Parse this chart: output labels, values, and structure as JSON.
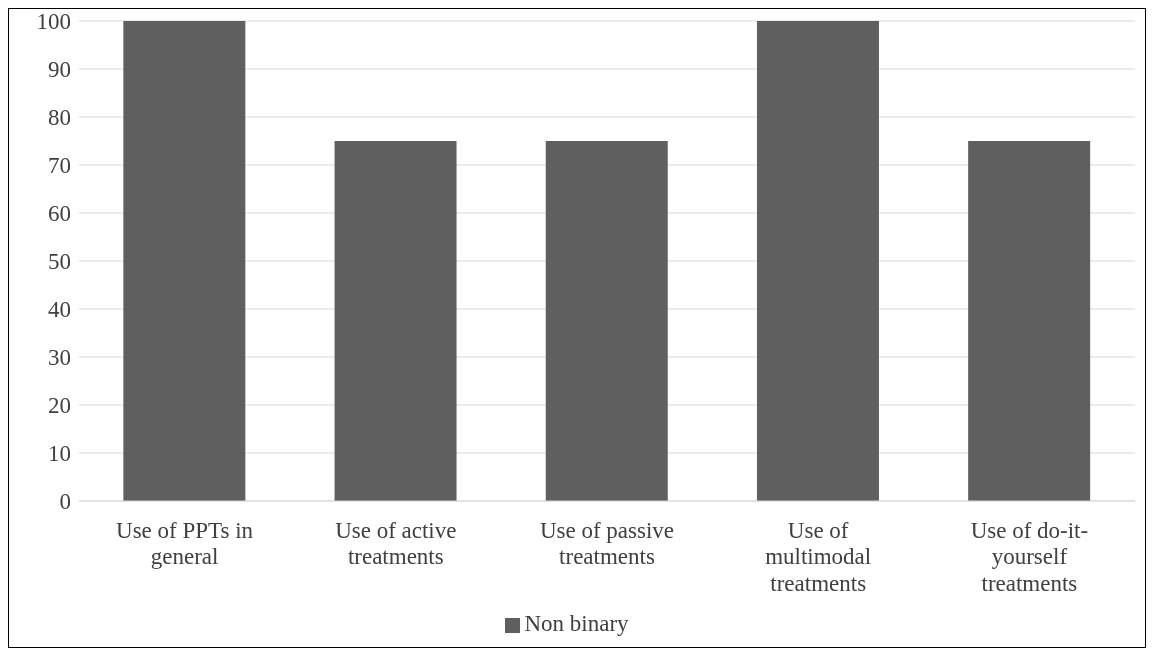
{
  "chart_data": {
    "type": "bar",
    "categories": [
      "Use of PPTs in general",
      "Use of active treatments",
      "Use of passive treatments",
      "Use of multimodal treatments",
      "Use of do-it-yourself treatments"
    ],
    "series": [
      {
        "name": "Non binary",
        "color": "#5f5f5f",
        "values": [
          100,
          75,
          75,
          100,
          75
        ]
      }
    ],
    "ylim": [
      0,
      100
    ],
    "yticks": [
      0,
      10,
      20,
      30,
      40,
      50,
      60,
      70,
      80,
      90,
      100
    ],
    "grid": "y",
    "legend": "bottom"
  }
}
